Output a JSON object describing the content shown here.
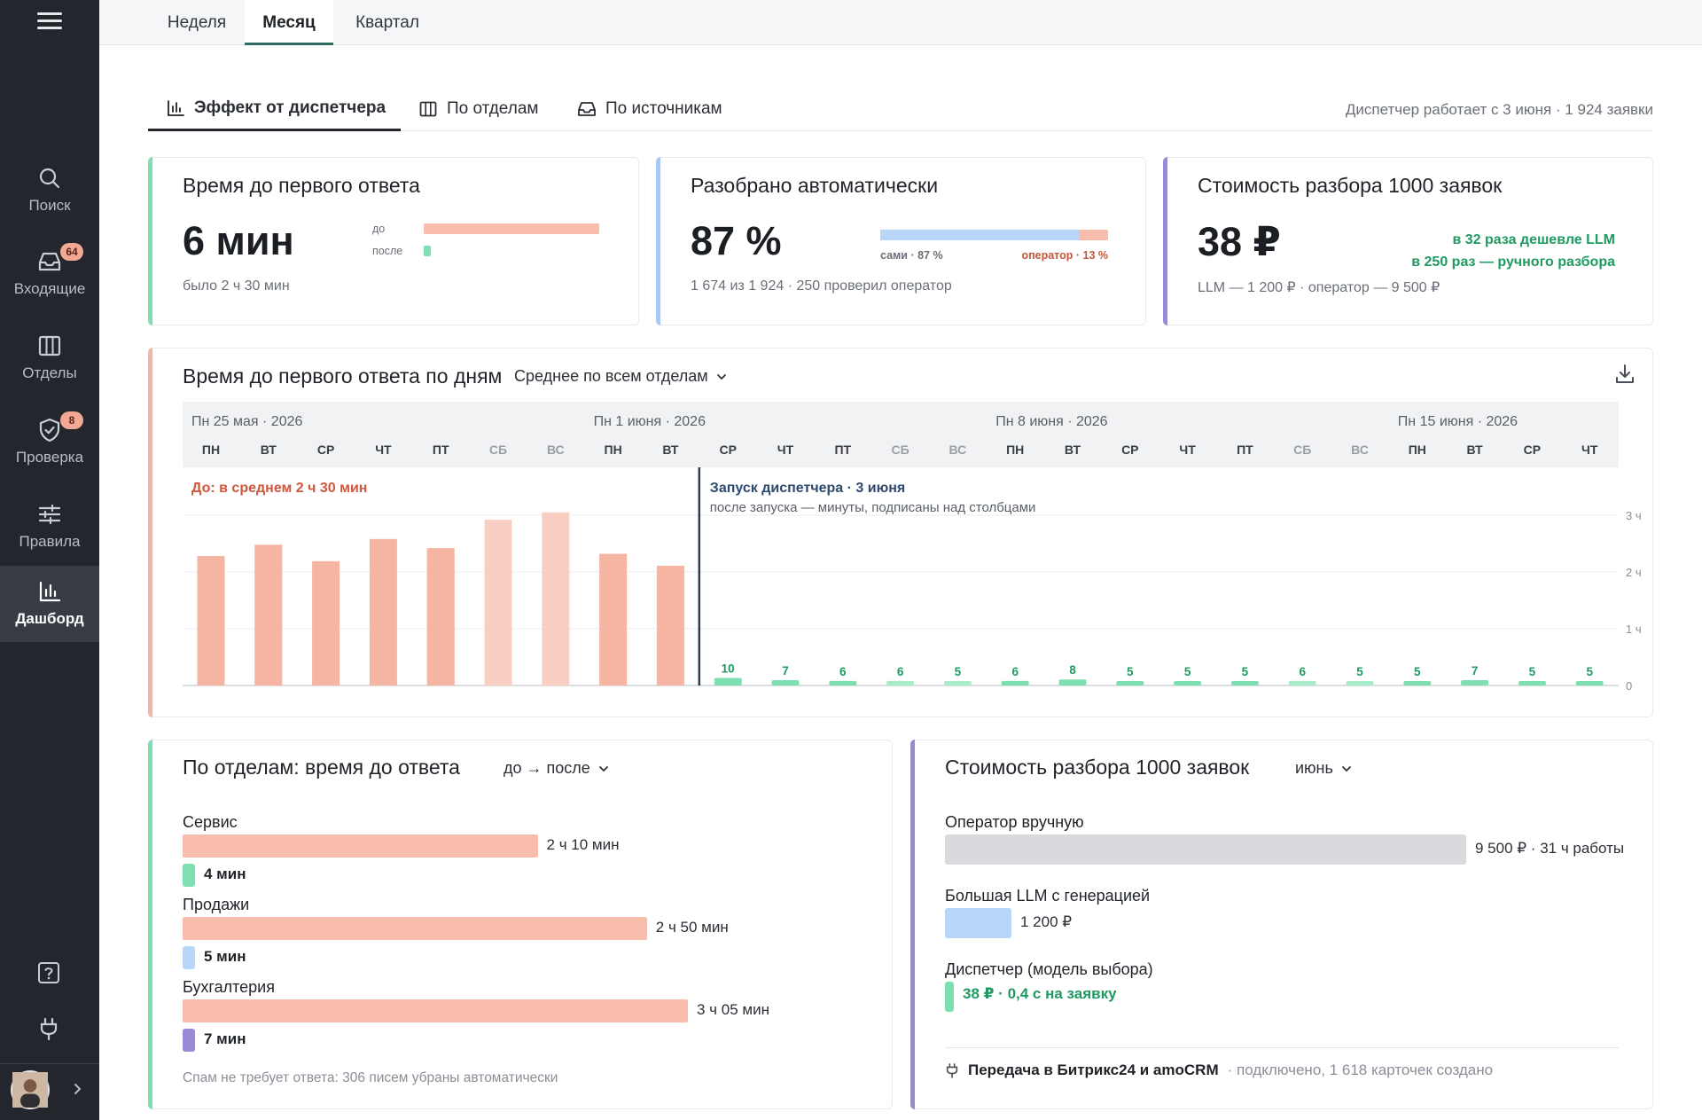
{
  "sidebar": {
    "items": [
      {
        "id": "search",
        "label": "Поиск",
        "icon": "search-icon",
        "badge": null,
        "active": false
      },
      {
        "id": "inbox",
        "label": "Входящие",
        "icon": "inbox-icon",
        "badge": "64",
        "active": false
      },
      {
        "id": "departments",
        "label": "Отделы",
        "icon": "columns-icon",
        "badge": null,
        "active": false
      },
      {
        "id": "review",
        "label": "Проверка",
        "icon": "shield-check-icon",
        "badge": "8",
        "active": false
      },
      {
        "id": "rules",
        "label": "Правила",
        "icon": "sliders-icon",
        "badge": null,
        "active": false
      },
      {
        "id": "dashboard",
        "label": "Дашборд",
        "icon": "bar-chart-icon",
        "badge": null,
        "active": true
      }
    ],
    "help_icon": "help-icon",
    "plug_icon": "plug-icon",
    "expand_icon": "chevron-right-icon"
  },
  "period_tabs": [
    {
      "label": "Неделя",
      "active": false
    },
    {
      "label": "Месяц",
      "active": true
    },
    {
      "label": "Квартал",
      "active": false
    }
  ],
  "view_tabs": [
    {
      "label": "Эффект от диспетчера",
      "icon": "bar-chart-icon",
      "active": true
    },
    {
      "label": "По отделам",
      "icon": "columns-icon",
      "active": false
    },
    {
      "label": "По источникам",
      "icon": "inbox-icon",
      "active": false
    }
  ],
  "since_text": "Диспетчер работает с 3 июня · 1 924 заявки",
  "kpi": {
    "response": {
      "title": "Время до первого ответа",
      "value": "6 мин",
      "before_label": "до",
      "after_label": "после",
      "before_share": 1.0,
      "after_share": 0.04,
      "sub": "было 2 ч 30 мин",
      "accent": "#7ee0b0"
    },
    "auto": {
      "title": "Разобрано автоматически",
      "value": "87 %",
      "self_label": "сами · 87 %",
      "operator_label": "оператор · 13 %",
      "self_share": 0.87,
      "sub": "1 674 из 1 924 · 250 проверил оператор",
      "accent": "#a8c8f5"
    },
    "cost": {
      "title": "Стоимость разбора 1000 заявок",
      "value": "38 ₽",
      "compare_llm": "в 32 раза дешевле LLM",
      "compare_manual": "в 250 раз — ручного разбора",
      "sub": "LLM — 1 200 ₽ · оператор — 9 500 ₽",
      "accent": "#9a8ad6"
    }
  },
  "daily": {
    "title": "Время до первого ответа по дням",
    "filter": "Среднее по всем отделам",
    "download_icon": "download-icon",
    "week_labels": [
      "Пн 25 мая · 2026",
      "Пн 1 июня · 2026",
      "Пн 8 июня · 2026",
      "Пн 15 июня · 2026"
    ],
    "before_note": "До: в среднем 2 ч 30 мин",
    "launch_title": "Запуск диспетчера · 3 июня",
    "launch_sub": "после запуска — минуты, подписаны над столбцами"
  },
  "chart_data": {
    "type": "bar",
    "title": "Время до первого ответа по дням",
    "y_unit": "ч",
    "ylim": [
      0,
      3
    ],
    "yticks": [
      "0",
      "1 ч",
      "2 ч",
      "3 ч"
    ],
    "categories": [
      "ПН",
      "ВТ",
      "СР",
      "ЧТ",
      "ПТ",
      "СБ",
      "ВС",
      "ПН",
      "ВТ",
      "СР",
      "ЧТ",
      "ПТ",
      "СБ",
      "ВС",
      "ПН",
      "ВТ",
      "СР",
      "ЧТ",
      "ПТ",
      "СБ",
      "ВС",
      "ПН",
      "ВТ",
      "СР",
      "ЧТ"
    ],
    "weekend": [
      false,
      false,
      false,
      false,
      false,
      true,
      true,
      false,
      false,
      false,
      false,
      false,
      true,
      true,
      false,
      false,
      false,
      false,
      false,
      true,
      true,
      false,
      false,
      false,
      false
    ],
    "launch_index": 9,
    "series": [
      {
        "name": "До",
        "values_hours": [
          2.28,
          2.48,
          2.19,
          2.58,
          2.42,
          2.92,
          3.05,
          2.32,
          2.11,
          null,
          null,
          null,
          null,
          null,
          null,
          null,
          null,
          null,
          null,
          null,
          null,
          null,
          null,
          null,
          null
        ],
        "color": "#f6b4a3",
        "weekend_color": "#f9cfc4"
      },
      {
        "name": "После",
        "values_minutes": [
          null,
          null,
          null,
          null,
          null,
          null,
          null,
          null,
          null,
          10,
          7,
          6,
          6,
          5,
          6,
          8,
          5,
          5,
          5,
          6,
          5,
          5,
          7,
          5,
          5
        ],
        "labels": [
          "",
          "",
          "",
          "",
          "",
          "",
          "",
          "",
          "",
          "10",
          "7",
          "6",
          "6",
          "5",
          "6",
          "8",
          "5",
          "5",
          "5",
          "6",
          "5",
          "5",
          "7",
          "5",
          "5"
        ],
        "color": "#7ee0b0",
        "weekend_color": "#a9ecca"
      }
    ],
    "grid": true
  },
  "departments": {
    "title": "По отделам: время до ответа",
    "filter": "до → после",
    "rows": [
      {
        "name": "Сервис",
        "before": "2 ч 10 мин",
        "before_min": 130,
        "after": "4 мин",
        "after_color": "#7ee0b0"
      },
      {
        "name": "Продажи",
        "before": "2 ч 50 мин",
        "before_min": 170,
        "after": "5 мин",
        "after_color": "#b8d6f7"
      },
      {
        "name": "Бухгалтерия",
        "before": "3 ч 05 мин",
        "before_min": 185,
        "after": "7 мин",
        "after_color": "#9a8ad6"
      }
    ],
    "footnote": "Спам не требует ответа: 306 писем убраны автоматически"
  },
  "cost": {
    "title": "Стоимость разбора 1000 заявок",
    "filter": "июнь",
    "rows": [
      {
        "name": "Оператор вручную",
        "label": "9 500 ₽ · 31 ч работы",
        "value_rub": 9500,
        "color": "#d9dadd",
        "label_color": "#2b2f35"
      },
      {
        "name": "Большая LLM с генерацией",
        "label": "1 200 ₽",
        "value_rub": 1200,
        "color": "#b8d6f7",
        "label_color": "#2b2f35"
      },
      {
        "name": "Диспетчер (модель выбора)",
        "label": "38 ₽ · 0,4 с на заявку",
        "value_rub": 38,
        "color": "#7ee0b0",
        "label_color": "#1f9a62"
      }
    ],
    "integration_title": "Передача в Битрикс24 и amoCRM",
    "integration_status": "· подключено, 1 618 карточек создано"
  }
}
